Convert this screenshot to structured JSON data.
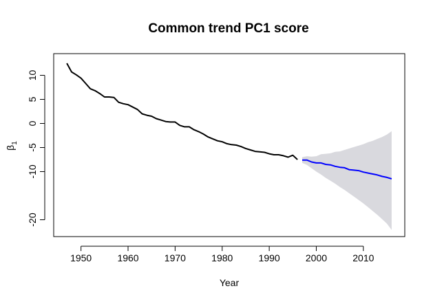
{
  "chart_data": {
    "type": "line",
    "title": "Common trend PC1 score",
    "xlabel": "Year",
    "ylabel": "β",
    "ylabel_sub": "1",
    "xlim": [
      1944.2,
      2018.8
    ],
    "ylim": [
      -23.5,
      14.5
    ],
    "xticks": [
      1950,
      1960,
      1970,
      1980,
      1990,
      2000,
      2010
    ],
    "yticks": [
      10,
      5,
      0,
      -5,
      -10,
      -20
    ],
    "grid": false,
    "series": [
      {
        "color": "#000000",
        "x": [
          1947,
          1948,
          1949,
          1950,
          1951,
          1952,
          1953,
          1954,
          1955,
          1956,
          1957,
          1958,
          1959,
          1960,
          1961,
          1962,
          1963,
          1964,
          1965,
          1966,
          1967,
          1968,
          1969,
          1970,
          1971,
          1972,
          1973,
          1974,
          1975,
          1976,
          1977,
          1978,
          1979,
          1980,
          1981,
          1982,
          1983,
          1984,
          1985,
          1986,
          1987,
          1988,
          1989,
          1990,
          1991,
          1992,
          1993,
          1994,
          1995,
          1996
        ],
        "values": [
          12.5,
          10.7,
          10.1,
          9.4,
          8.3,
          7.2,
          6.8,
          6.2,
          5.5,
          5.5,
          5.4,
          4.4,
          4.1,
          3.9,
          3.4,
          2.9,
          2.0,
          1.7,
          1.5,
          1.0,
          0.7,
          0.4,
          0.3,
          0.3,
          -0.4,
          -0.7,
          -0.7,
          -1.3,
          -1.7,
          -2.2,
          -2.8,
          -3.2,
          -3.6,
          -3.8,
          -4.2,
          -4.4,
          -4.5,
          -4.8,
          -5.2,
          -5.5,
          -5.8,
          -5.9,
          -6.0,
          -6.3,
          -6.5,
          -6.5,
          -6.7,
          -7.0,
          -6.6,
          -7.5
        ]
      },
      {
        "color": "#0000ff",
        "x": [
          1997,
          1998,
          1999,
          2000,
          2001,
          2002,
          2003,
          2004,
          2005,
          2006,
          2007,
          2008,
          2009,
          2010,
          2011,
          2012,
          2013,
          2014,
          2015,
          2016
        ],
        "values": [
          -7.6,
          -7.6,
          -8.0,
          -8.2,
          -8.2,
          -8.5,
          -8.6,
          -8.9,
          -9.1,
          -9.2,
          -9.6,
          -9.7,
          -9.8,
          -10.1,
          -10.3,
          -10.5,
          -10.7,
          -11.0,
          -11.2,
          -11.5
        ]
      }
    ],
    "band": {
      "color": "#d9d9de",
      "x": [
        1997,
        1998,
        1999,
        2000,
        2001,
        2002,
        2003,
        2004,
        2005,
        2006,
        2007,
        2008,
        2009,
        2010,
        2011,
        2012,
        2013,
        2014,
        2015,
        2016
      ],
      "upper": [
        -7.0,
        -6.8,
        -6.9,
        -6.8,
        -6.4,
        -6.3,
        -6.2,
        -5.9,
        -5.8,
        -5.5,
        -5.2,
        -4.9,
        -4.6,
        -4.3,
        -3.9,
        -3.6,
        -3.2,
        -2.8,
        -2.3,
        -1.6
      ],
      "lower": [
        -8.2,
        -8.6,
        -9.3,
        -10.0,
        -10.6,
        -11.3,
        -11.9,
        -12.5,
        -13.2,
        -13.8,
        -14.5,
        -15.2,
        -15.9,
        -16.6,
        -17.4,
        -18.2,
        -19.0,
        -19.9,
        -20.8,
        -22.1
      ]
    }
  }
}
